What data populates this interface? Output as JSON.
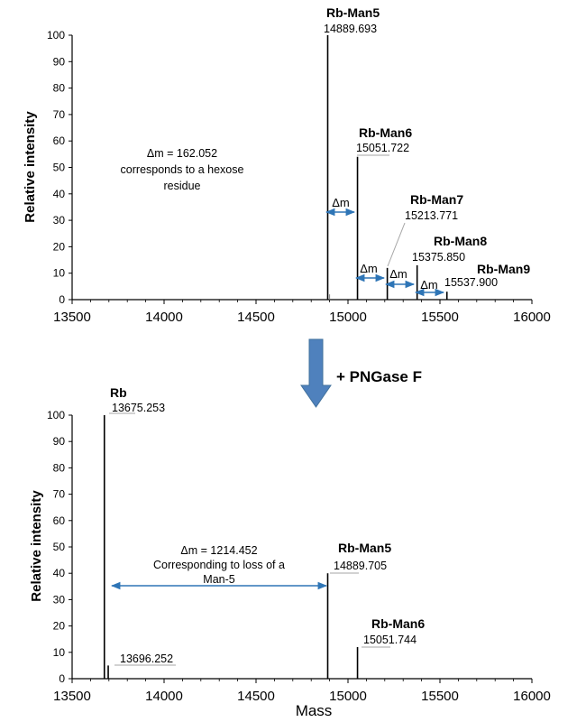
{
  "chart_data": [
    {
      "type": "bar",
      "ylabel": "Relative intensity",
      "xlabel": "",
      "xlim": [
        13500,
        16000
      ],
      "ylim": [
        0,
        100
      ],
      "xticks": [
        "13500",
        "14000",
        "14500",
        "15000",
        "15500",
        "16000"
      ],
      "yticks": [
        "0",
        "10",
        "20",
        "30",
        "40",
        "50",
        "60",
        "70",
        "80",
        "90",
        "100"
      ],
      "peaks": [
        {
          "x": 14889.693,
          "y": 100,
          "name": "Rb-Man5",
          "mass": "14889.693"
        },
        {
          "x": 15051.722,
          "y": 54,
          "name": "Rb-Man6",
          "mass": "15051.722"
        },
        {
          "x": 15213.771,
          "y": 12,
          "name": "Rb-Man7",
          "mass": "15213.771"
        },
        {
          "x": 15375.85,
          "y": 13,
          "name": "Rb-Man8",
          "mass": "15375.850"
        },
        {
          "x": 15537.9,
          "y": 3,
          "name": "Rb-Man9",
          "mass": "15537.900"
        },
        {
          "x": 14900,
          "y": 2,
          "name": "",
          "mass": ""
        }
      ],
      "annotations": [
        "Δm = 162.052",
        "corresponds to a hexose",
        "residue"
      ],
      "delta_symbol": "Δm"
    },
    {
      "type": "bar",
      "ylabel": "Relative intensity",
      "xlabel": "Mass",
      "xlim": [
        13500,
        16000
      ],
      "ylim": [
        0,
        100
      ],
      "xticks": [
        "13500",
        "14000",
        "14500",
        "15000",
        "15500",
        "16000"
      ],
      "yticks": [
        "0",
        "10",
        "20",
        "30",
        "40",
        "50",
        "60",
        "70",
        "80",
        "90",
        "100"
      ],
      "peaks": [
        {
          "x": 13675.253,
          "y": 100,
          "name": "Rb",
          "mass": "13675.253"
        },
        {
          "x": 13696.252,
          "y": 5,
          "name": "",
          "mass": "13696.252"
        },
        {
          "x": 14889.705,
          "y": 40,
          "name": "Rb-Man5",
          "mass": "14889.705"
        },
        {
          "x": 15051.744,
          "y": 12,
          "name": "Rb-Man6",
          "mass": "15051.744"
        }
      ],
      "annotations": [
        "Δm = 1214.452",
        "Corresponding to loss of a",
        "Man-5"
      ]
    }
  ],
  "treatment_label": "+ PNGase F",
  "colors": {
    "arrow": "#4f81bd",
    "arrow_border": "#41719c",
    "delta_arrow": "#2e75b6",
    "axis": "#000000",
    "leader": "#a6a6a6"
  }
}
